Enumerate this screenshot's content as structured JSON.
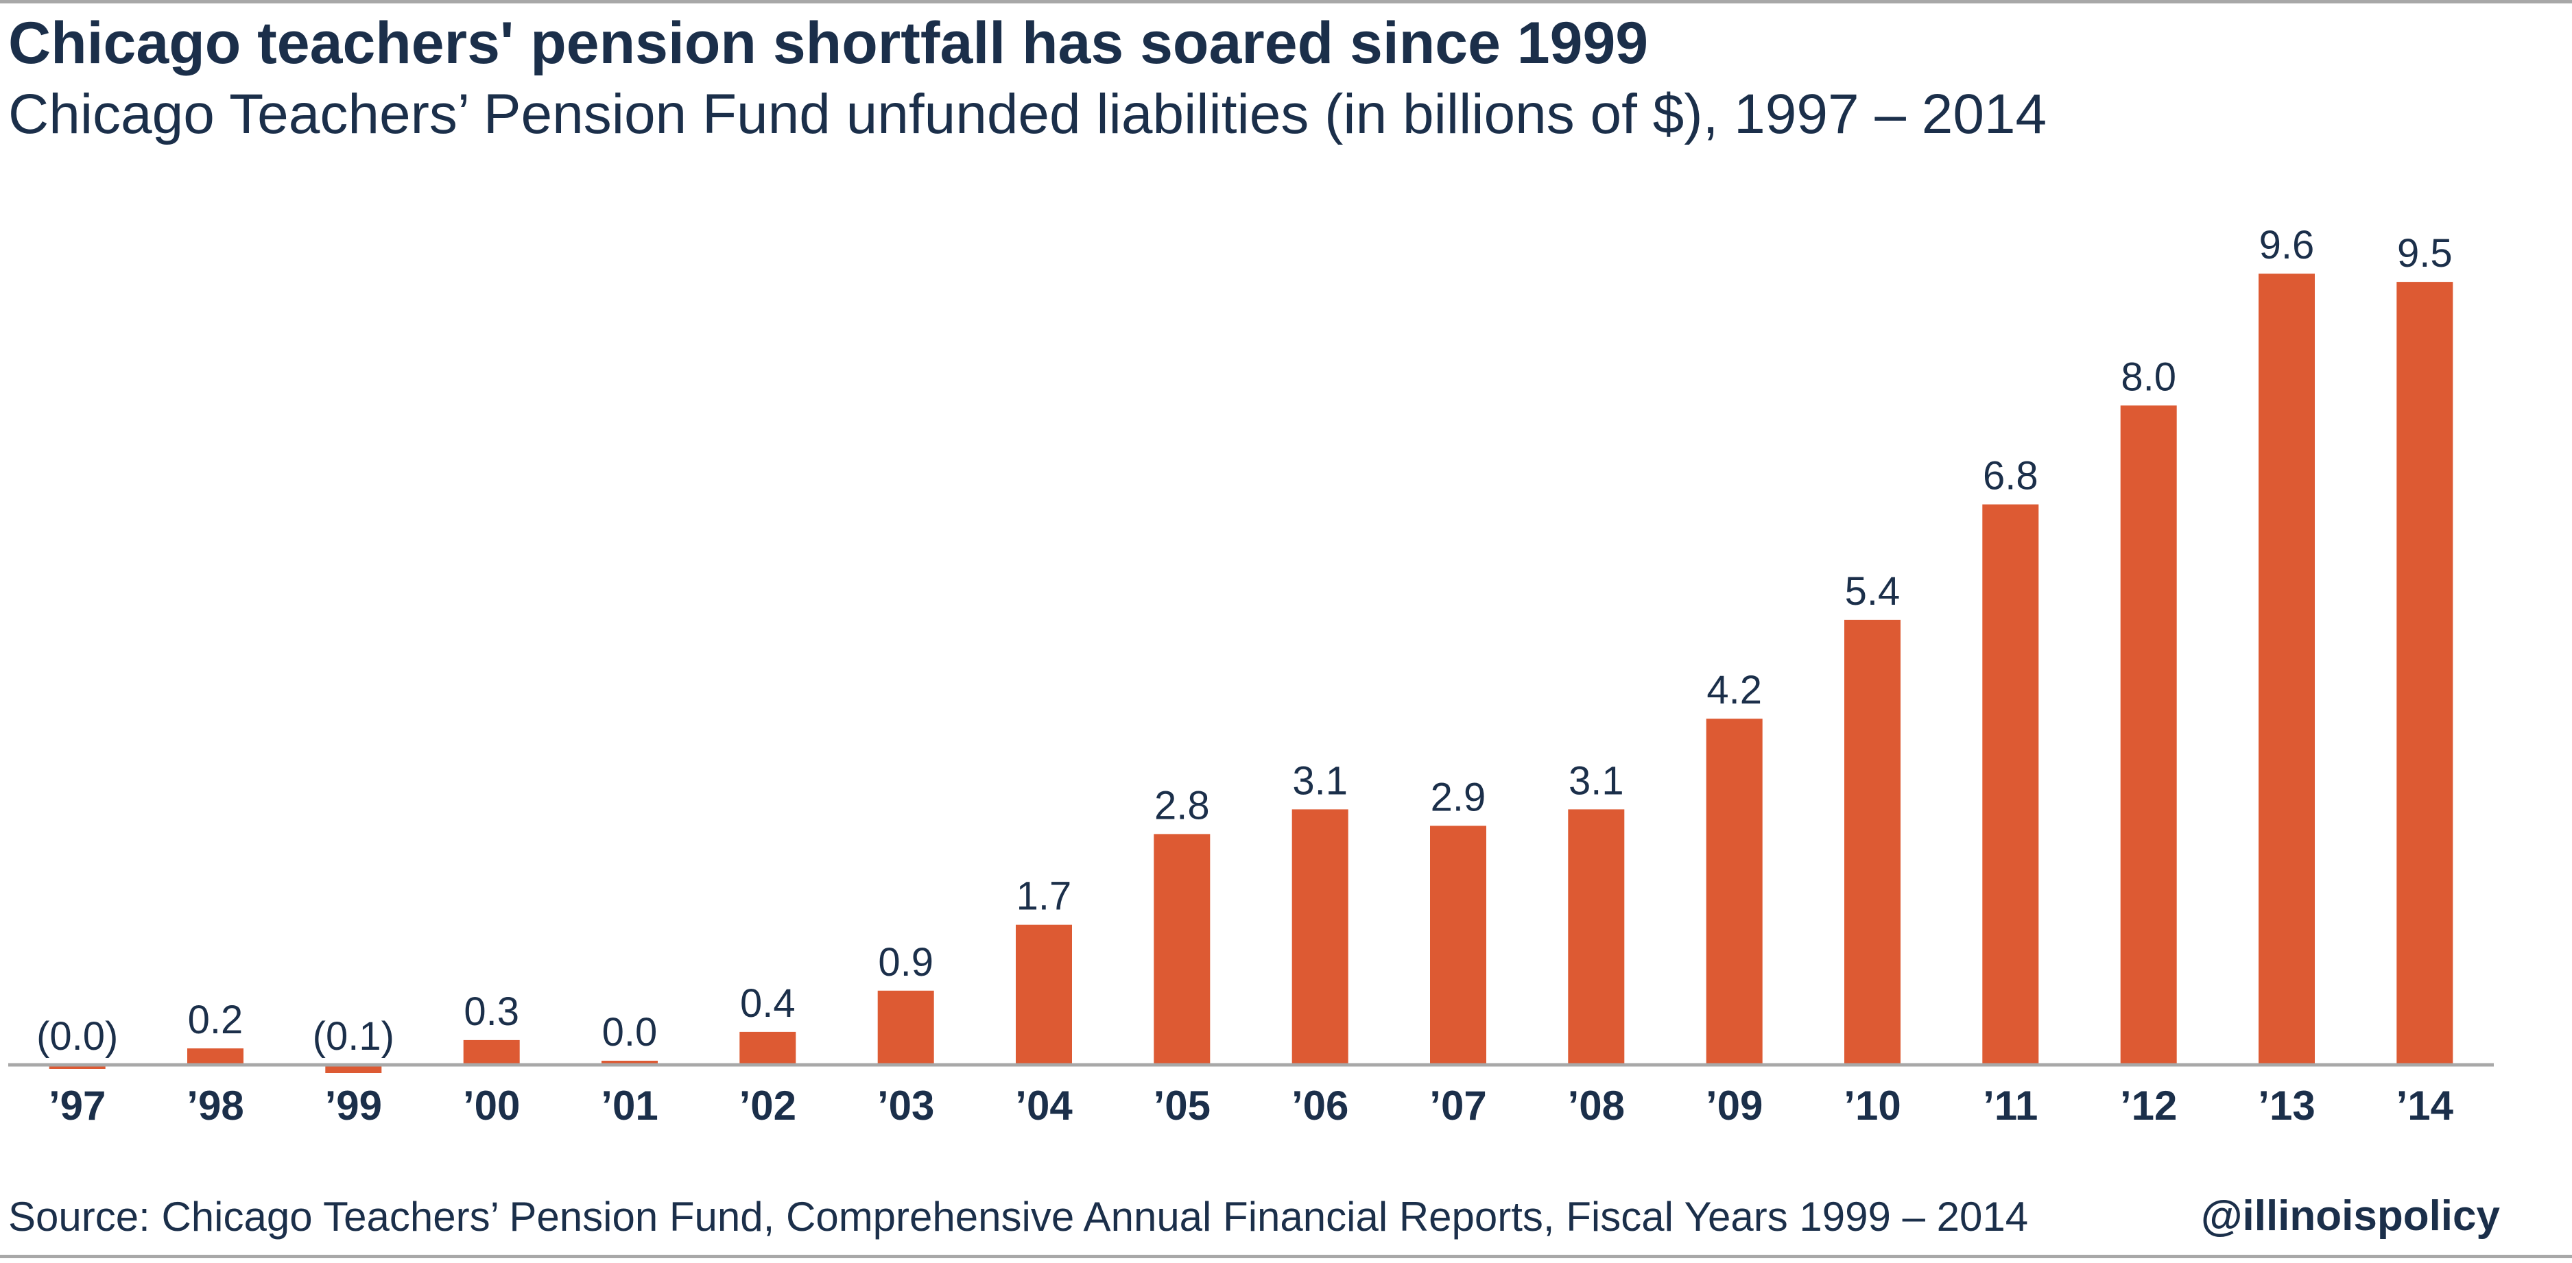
{
  "header": {
    "title": "Chicago teachers' pension shortfall has soared since 1999",
    "subtitle": "Chicago Teachers’ Pension Fund unfunded liabilities (in billions of $), 1997 – 2014"
  },
  "footer": {
    "source": "Source: Chicago Teachers’ Pension Fund, Comprehensive Annual Financial Reports, Fiscal Years 1999 – 2014",
    "handle": "@illinoispolicy"
  },
  "colors": {
    "bar": "#dd5a33",
    "text": "#1b2f4a",
    "axis": "#a8a8a8"
  },
  "chart_data": {
    "type": "bar",
    "title": "Chicago teachers' pension shortfall has soared since 1999",
    "subtitle": "Chicago Teachers’ Pension Fund unfunded liabilities (in billions of $), 1997 – 2014",
    "xlabel": "",
    "ylabel": "",
    "categories": [
      "’97",
      "’98",
      "’99",
      "’00",
      "’01",
      "’02",
      "’03",
      "’04",
      "’05",
      "’06",
      "’07",
      "’08",
      "’09",
      "’10",
      "’11",
      "’12",
      "’13",
      "’14"
    ],
    "values": [
      -0.01,
      0.2,
      -0.1,
      0.3,
      0.04,
      0.4,
      0.9,
      1.7,
      2.8,
      3.1,
      2.9,
      3.1,
      4.2,
      5.4,
      6.8,
      8.0,
      9.6,
      9.5
    ],
    "data_labels": [
      "(0.0)",
      "0.2",
      "(0.1)",
      "0.3",
      "0.0",
      "0.4",
      "0.9",
      "1.7",
      "2.8",
      "3.1",
      "2.9",
      "3.1",
      "4.2",
      "5.4",
      "6.8",
      "8.0",
      "9.6",
      "9.5"
    ],
    "grid": false,
    "legend": "none"
  }
}
